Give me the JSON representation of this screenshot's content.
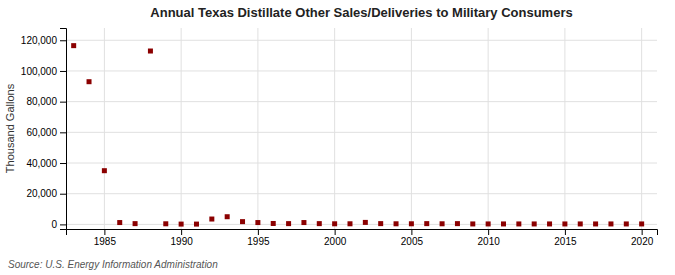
{
  "chart_data": {
    "type": "scatter",
    "title": "Annual Texas Distillate Other Sales/Deliveries to Military Consumers",
    "ylabel": "Thousand Gallons",
    "source": "Source: U.S. Energy Information Administration",
    "color": "#8b0000",
    "marker": "square",
    "grid": true,
    "xlim": [
      1982.5,
      2021
    ],
    "ylim": [
      -3000,
      128000
    ],
    "xticks": [
      1985,
      1990,
      1995,
      2000,
      2005,
      2010,
      2015,
      2020
    ],
    "yticks": [
      0,
      {
        "value": 20000,
        "label": "20,000"
      },
      {
        "value": 40000,
        "label": "40,000"
      },
      {
        "value": 60000,
        "label": "60,000"
      },
      {
        "value": 80000,
        "label": "80,000"
      },
      {
        "value": 100000,
        "label": "100,000"
      },
      {
        "value": 120000,
        "label": "120,000"
      }
    ],
    "x": [
      1983,
      1984,
      1985,
      1986,
      1987,
      1988,
      1989,
      1990,
      1991,
      1992,
      1993,
      1994,
      1995,
      1996,
      1997,
      1998,
      1999,
      2000,
      2001,
      2002,
      2003,
      2004,
      2005,
      2006,
      2007,
      2008,
      2009,
      2010,
      2011,
      2012,
      2013,
      2014,
      2015,
      2016,
      2017,
      2018,
      2019,
      2020
    ],
    "values": [
      116500,
      93000,
      35000,
      1200,
      500,
      113000,
      400,
      200,
      200,
      3500,
      5000,
      1800,
      1200,
      600,
      500,
      1200,
      500,
      400,
      400,
      1300,
      500,
      400,
      400,
      500,
      400,
      500,
      300,
      300,
      300,
      300,
      300,
      300,
      300,
      300,
      300,
      300,
      300,
      300
    ]
  }
}
